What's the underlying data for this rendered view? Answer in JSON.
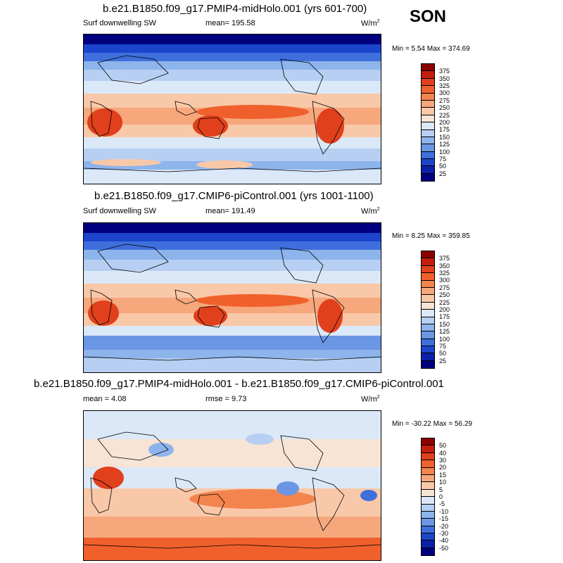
{
  "season": "SON",
  "panels": [
    {
      "title": "b.e21.B1850.f09_g17.PMIP4-midHolo.001 (yrs 601-700)",
      "left_label": "Surf downwelling SW",
      "center_label": "mean= 195.58",
      "units": "W/m",
      "units_sup": "2",
      "minmax": "Min =   5.54 Max = 374.69",
      "colorbar": {
        "labels": [
          "375",
          "350",
          "325",
          "300",
          "275",
          "250",
          "225",
          "200",
          "175",
          "150",
          "125",
          "100",
          "75",
          "50",
          "25"
        ],
        "colors": [
          "#8b0000",
          "#c41e0c",
          "#e0401c",
          "#f0602c",
          "#f4844e",
          "#f7a77c",
          "#f9c8a8",
          "#f7e4d5",
          "#dbe8f7",
          "#b6cff2",
          "#8eb4ec",
          "#6a96e4",
          "#3f6fdc",
          "#1c45cc",
          "#0b1fa8",
          "#00007f"
        ]
      }
    },
    {
      "title": "b.e21.B1850.f09_g17.CMIP6-piControl.001 (yrs 1001-1100)",
      "left_label": "Surf downwelling SW",
      "center_label": "mean= 191.49",
      "units": "W/m",
      "units_sup": "2",
      "minmax": "Min =   8.25 Max = 359.85",
      "colorbar": {
        "labels": [
          "375",
          "350",
          "325",
          "300",
          "275",
          "250",
          "225",
          "200",
          "175",
          "150",
          "125",
          "100",
          "75",
          "50",
          "25"
        ],
        "colors": [
          "#8b0000",
          "#c41e0c",
          "#e0401c",
          "#f0602c",
          "#f4844e",
          "#f7a77c",
          "#f9c8a8",
          "#f7e4d5",
          "#dbe8f7",
          "#b6cff2",
          "#8eb4ec",
          "#6a96e4",
          "#3f6fdc",
          "#1c45cc",
          "#0b1fa8",
          "#00007f"
        ]
      }
    },
    {
      "title": "b.e21.B1850.f09_g17.PMIP4-midHolo.001 - b.e21.B1850.f09_g17.CMIP6-piControl.001",
      "left_label": "mean =   4.08",
      "center_label": "rmse =   9.73",
      "units": "W/m",
      "units_sup": "2",
      "minmax": "Min = -30.22 Max =  56.29",
      "colorbar": {
        "labels": [
          "50",
          "40",
          "30",
          "20",
          "15",
          "10",
          "5",
          "0",
          "-5",
          "-10",
          "-15",
          "-20",
          "-30",
          "-40",
          "-50"
        ],
        "colors": [
          "#8b0000",
          "#c41e0c",
          "#e0401c",
          "#f0602c",
          "#f4844e",
          "#f7a77c",
          "#f9c8a8",
          "#f7e4d5",
          "#dbe8f7",
          "#b6cff2",
          "#8eb4ec",
          "#6a96e4",
          "#3f6fdc",
          "#1c45cc",
          "#0b1fa8",
          "#00007f"
        ]
      }
    }
  ]
}
